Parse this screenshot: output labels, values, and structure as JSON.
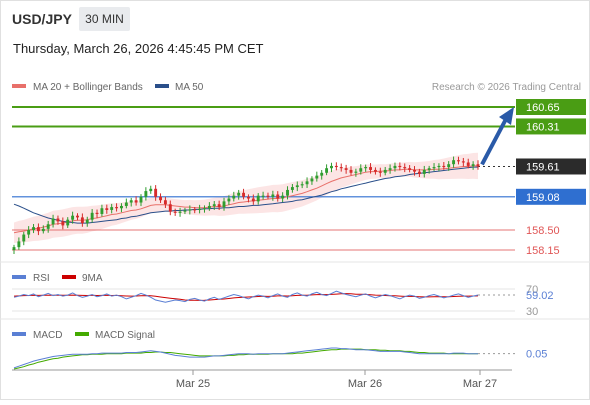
{
  "header": {
    "symbol": "USD/JPY",
    "timeframe": "30 MIN",
    "datetime": "Thursday, March 26, 2026 4:45:45 PM CET",
    "credit": "Research © 2026 Trading Central"
  },
  "colors": {
    "candle_up": "#2f9d2f",
    "candle_down": "#d62b2b",
    "ma20": "#e8706a",
    "ma50": "#2a4f8a",
    "bollinger_fill": "#fbdcdc",
    "resistance": "#4a9d14",
    "current": "#333333",
    "pivot": "#2f6fd0",
    "support": "#e05555",
    "arrow": "#2a5aa8",
    "rsi": "#5a7fd4",
    "rsi_ma": "#cc0000",
    "macd": "#5a7fd4",
    "macd_signal": "#44aa00",
    "grid": "#e6e6e6",
    "axis_text": "#555555"
  },
  "chart_data": [
    {
      "type": "candlestick",
      "title": "USD/JPY",
      "legend": [
        {
          "name": "MA 20 + Bollinger Bands",
          "color": "#e8706a"
        },
        {
          "name": "MA 50",
          "color": "#2a4f8a"
        }
      ],
      "legend_position": "top-left",
      "x_ticks": [
        "Mar 25",
        "Mar 26",
        "Mar 27"
      ],
      "ylim": [
        158.0,
        160.8
      ],
      "levels": [
        {
          "value": 160.65,
          "label": "160.65",
          "kind": "resistance"
        },
        {
          "value": 160.31,
          "label": "160.31",
          "kind": "resistance"
        },
        {
          "value": 159.61,
          "label": "159.61",
          "kind": "current"
        },
        {
          "value": 159.08,
          "label": "159.08",
          "kind": "pivot"
        },
        {
          "value": 158.5,
          "label": "158.50",
          "kind": "support"
        },
        {
          "value": 158.15,
          "label": "158.15",
          "kind": "support"
        }
      ],
      "projection": {
        "from": 159.61,
        "to": 160.65
      },
      "close": [
        158.2,
        158.3,
        158.42,
        158.5,
        158.55,
        158.48,
        158.52,
        158.6,
        158.7,
        158.65,
        158.58,
        158.68,
        158.75,
        158.72,
        158.62,
        158.68,
        158.8,
        158.78,
        158.88,
        158.85,
        158.9,
        158.88,
        158.92,
        158.98,
        159.02,
        158.98,
        159.08,
        159.18,
        159.22,
        159.08,
        159.02,
        158.95,
        158.82,
        158.8,
        158.82,
        158.84,
        158.86,
        158.85,
        158.87,
        158.88,
        158.92,
        158.95,
        158.9,
        159.0,
        159.05,
        159.1,
        159.15,
        159.08,
        159.05,
        159.0,
        159.1,
        159.1,
        159.08,
        159.12,
        159.05,
        159.1,
        159.2,
        159.25,
        159.28,
        159.3,
        159.35,
        159.4,
        159.45,
        159.5,
        159.58,
        159.62,
        159.6,
        159.58,
        159.55,
        159.5,
        159.52,
        159.58,
        159.6,
        159.55,
        159.52,
        159.5,
        159.55,
        159.58,
        159.62,
        159.6,
        159.58,
        159.55,
        159.52,
        159.48,
        159.55,
        159.58,
        159.6,
        159.62,
        159.6,
        159.65,
        159.72,
        159.7,
        159.68,
        159.62,
        159.65,
        159.61
      ],
      "ma20": [
        158.45,
        158.47,
        158.48,
        158.5,
        158.52,
        158.53,
        158.55,
        158.57,
        158.6,
        158.61,
        158.62,
        158.64,
        158.66,
        158.67,
        158.67,
        158.68,
        158.7,
        158.71,
        158.73,
        158.75,
        158.77,
        158.78,
        158.8,
        158.82,
        158.84,
        158.85,
        158.87,
        158.9,
        158.93,
        158.94,
        158.94,
        158.94,
        158.93,
        158.92,
        158.91,
        158.9,
        158.9,
        158.89,
        158.89,
        158.89,
        158.9,
        158.91,
        158.91,
        158.92,
        158.94,
        158.96,
        158.98,
        158.99,
        159.0,
        159.01,
        159.02,
        159.03,
        159.04,
        159.05,
        159.05,
        159.06,
        159.08,
        159.1,
        159.12,
        159.14,
        159.17,
        159.2,
        159.23,
        159.27,
        159.31,
        159.35,
        159.38,
        159.41,
        159.43,
        159.45,
        159.47,
        159.49,
        159.51,
        159.52,
        159.52,
        159.53,
        159.53,
        159.54,
        159.55,
        159.55,
        159.56,
        159.56,
        159.55,
        159.55,
        159.55,
        159.55,
        159.56,
        159.56,
        159.57,
        159.58,
        159.59,
        159.6,
        159.61,
        159.61,
        159.62,
        159.62
      ],
      "ma50": [
        158.95,
        158.92,
        158.88,
        158.84,
        158.8,
        158.77,
        158.74,
        158.71,
        158.69,
        158.67,
        158.65,
        158.64,
        158.63,
        158.62,
        158.62,
        158.62,
        158.63,
        158.64,
        158.65,
        158.66,
        158.67,
        158.68,
        158.7,
        158.71,
        158.73,
        158.74,
        158.76,
        158.78,
        158.8,
        158.81,
        158.82,
        158.83,
        158.83,
        158.84,
        158.84,
        158.85,
        158.85,
        158.86,
        158.86,
        158.87,
        158.87,
        158.88,
        158.88,
        158.89,
        158.89,
        158.9,
        158.91,
        158.91,
        158.92,
        158.93,
        158.93,
        158.94,
        158.95,
        158.96,
        158.97,
        158.98,
        158.99,
        159.0,
        159.02,
        159.03,
        159.05,
        159.07,
        159.09,
        159.11,
        159.14,
        159.17,
        159.19,
        159.22,
        159.24,
        159.26,
        159.28,
        159.3,
        159.32,
        159.34,
        159.36,
        159.38,
        159.4,
        159.41,
        159.43,
        159.44,
        159.45,
        159.47,
        159.48,
        159.49,
        159.5,
        159.51,
        159.52,
        159.53,
        159.54,
        159.55,
        159.56,
        159.57,
        159.58,
        159.59,
        159.6,
        159.6
      ]
    },
    {
      "type": "line",
      "title": "RSI",
      "legend": [
        {
          "name": "RSI",
          "color": "#5a7fd4"
        },
        {
          "name": "9MA",
          "color": "#cc0000"
        }
      ],
      "ylim": [
        20,
        80
      ],
      "y_ticks": [
        70,
        30
      ],
      "last_value": "59.02",
      "series": [
        {
          "name": "RSI",
          "values": [
            55,
            57,
            60,
            58,
            61,
            56,
            59,
            62,
            58,
            60,
            57,
            59,
            63,
            58,
            55,
            57,
            60,
            56,
            58,
            61,
            57,
            59,
            56,
            52,
            55,
            58,
            62,
            59,
            55,
            50,
            48,
            46,
            48,
            50,
            49,
            47,
            51,
            53,
            50,
            48,
            52,
            55,
            51,
            54,
            57,
            60,
            58,
            55,
            52,
            56,
            59,
            57,
            54,
            58,
            61,
            57,
            55,
            60,
            63,
            59,
            57,
            61,
            64,
            60,
            58,
            62,
            66,
            63,
            60,
            58,
            56,
            59,
            61,
            57,
            54,
            57,
            60,
            58,
            55,
            52,
            56,
            59,
            57,
            53,
            55,
            58,
            60,
            57,
            54,
            56,
            59,
            61,
            58,
            55,
            57,
            59.02
          ]
        },
        {
          "name": "9MA",
          "values": [
            57,
            57.5,
            58,
            58.2,
            58.5,
            58.4,
            58.6,
            58.8,
            58.7,
            58.9,
            58.6,
            58.8,
            59,
            58.8,
            58.4,
            58.2,
            58.5,
            58.2,
            58.3,
            58.5,
            58.2,
            58.3,
            57.8,
            57.2,
            57,
            57.3,
            57.8,
            58,
            57.6,
            56.8,
            55.5,
            54.3,
            53.2,
            52.4,
            51.3,
            50,
            49.6,
            49.4,
            49.3,
            49.5,
            50,
            50.8,
            51.2,
            51.8,
            52.7,
            53.8,
            54.6,
            55.1,
            55.4,
            55.9,
            56.4,
            56.8,
            56.5,
            56.9,
            57.5,
            57.4,
            57.2,
            57.7,
            58.3,
            58.6,
            58.8,
            59.2,
            59.8,
            60,
            59.9,
            60.2,
            60.8,
            61.3,
            61.6,
            61.2,
            60.6,
            60.3,
            60.1,
            59.7,
            59,
            58.5,
            58.2,
            57.9,
            57.6,
            57,
            56.6,
            56.5,
            56.4,
            56,
            55.6,
            55.6,
            56,
            56.2,
            56,
            55.9,
            56.3,
            56.8,
            57,
            57.1,
            57.3,
            57.5
          ]
        }
      ]
    },
    {
      "type": "line",
      "title": "MACD",
      "legend": [
        {
          "name": "MACD",
          "color": "#5a7fd4"
        },
        {
          "name": "MACD Signal",
          "color": "#44aa00"
        }
      ],
      "last_value": "0.05",
      "series": [
        {
          "name": "MACD",
          "values": [
            -0.2,
            -0.17,
            -0.14,
            -0.11,
            -0.08,
            -0.06,
            -0.04,
            -0.02,
            0.0,
            0.01,
            0.02,
            0.03,
            0.04,
            0.04,
            0.04,
            0.04,
            0.05,
            0.05,
            0.06,
            0.06,
            0.06,
            0.06,
            0.06,
            0.07,
            0.07,
            0.07,
            0.08,
            0.09,
            0.1,
            0.09,
            0.08,
            0.06,
            0.04,
            0.02,
            0.01,
            0.0,
            -0.01,
            -0.01,
            -0.01,
            -0.01,
            0.0,
            0.01,
            0.01,
            0.02,
            0.03,
            0.04,
            0.05,
            0.05,
            0.05,
            0.04,
            0.05,
            0.05,
            0.05,
            0.05,
            0.05,
            0.05,
            0.06,
            0.07,
            0.08,
            0.09,
            0.1,
            0.11,
            0.12,
            0.13,
            0.14,
            0.15,
            0.15,
            0.14,
            0.14,
            0.13,
            0.12,
            0.12,
            0.12,
            0.11,
            0.1,
            0.09,
            0.09,
            0.09,
            0.09,
            0.09,
            0.08,
            0.07,
            0.06,
            0.05,
            0.05,
            0.05,
            0.05,
            0.05,
            0.05,
            0.05,
            0.06,
            0.06,
            0.06,
            0.05,
            0.05,
            0.05
          ]
        },
        {
          "name": "MACD Signal",
          "values": [
            -0.22,
            -0.2,
            -0.18,
            -0.15,
            -0.13,
            -0.1,
            -0.08,
            -0.06,
            -0.04,
            -0.03,
            -0.01,
            0.0,
            0.01,
            0.02,
            0.03,
            0.03,
            0.04,
            0.04,
            0.04,
            0.05,
            0.05,
            0.05,
            0.05,
            0.06,
            0.06,
            0.06,
            0.06,
            0.07,
            0.07,
            0.08,
            0.08,
            0.07,
            0.07,
            0.06,
            0.05,
            0.04,
            0.03,
            0.02,
            0.01,
            0.01,
            0.01,
            0.01,
            0.01,
            0.01,
            0.02,
            0.02,
            0.03,
            0.03,
            0.04,
            0.04,
            0.04,
            0.04,
            0.04,
            0.05,
            0.05,
            0.05,
            0.05,
            0.05,
            0.06,
            0.06,
            0.07,
            0.08,
            0.09,
            0.1,
            0.11,
            0.12,
            0.12,
            0.13,
            0.13,
            0.13,
            0.13,
            0.13,
            0.12,
            0.12,
            0.12,
            0.11,
            0.11,
            0.1,
            0.1,
            0.1,
            0.09,
            0.09,
            0.08,
            0.07,
            0.07,
            0.06,
            0.06,
            0.06,
            0.06,
            0.05,
            0.05,
            0.05,
            0.05,
            0.05,
            0.05,
            0.05
          ]
        }
      ]
    }
  ]
}
